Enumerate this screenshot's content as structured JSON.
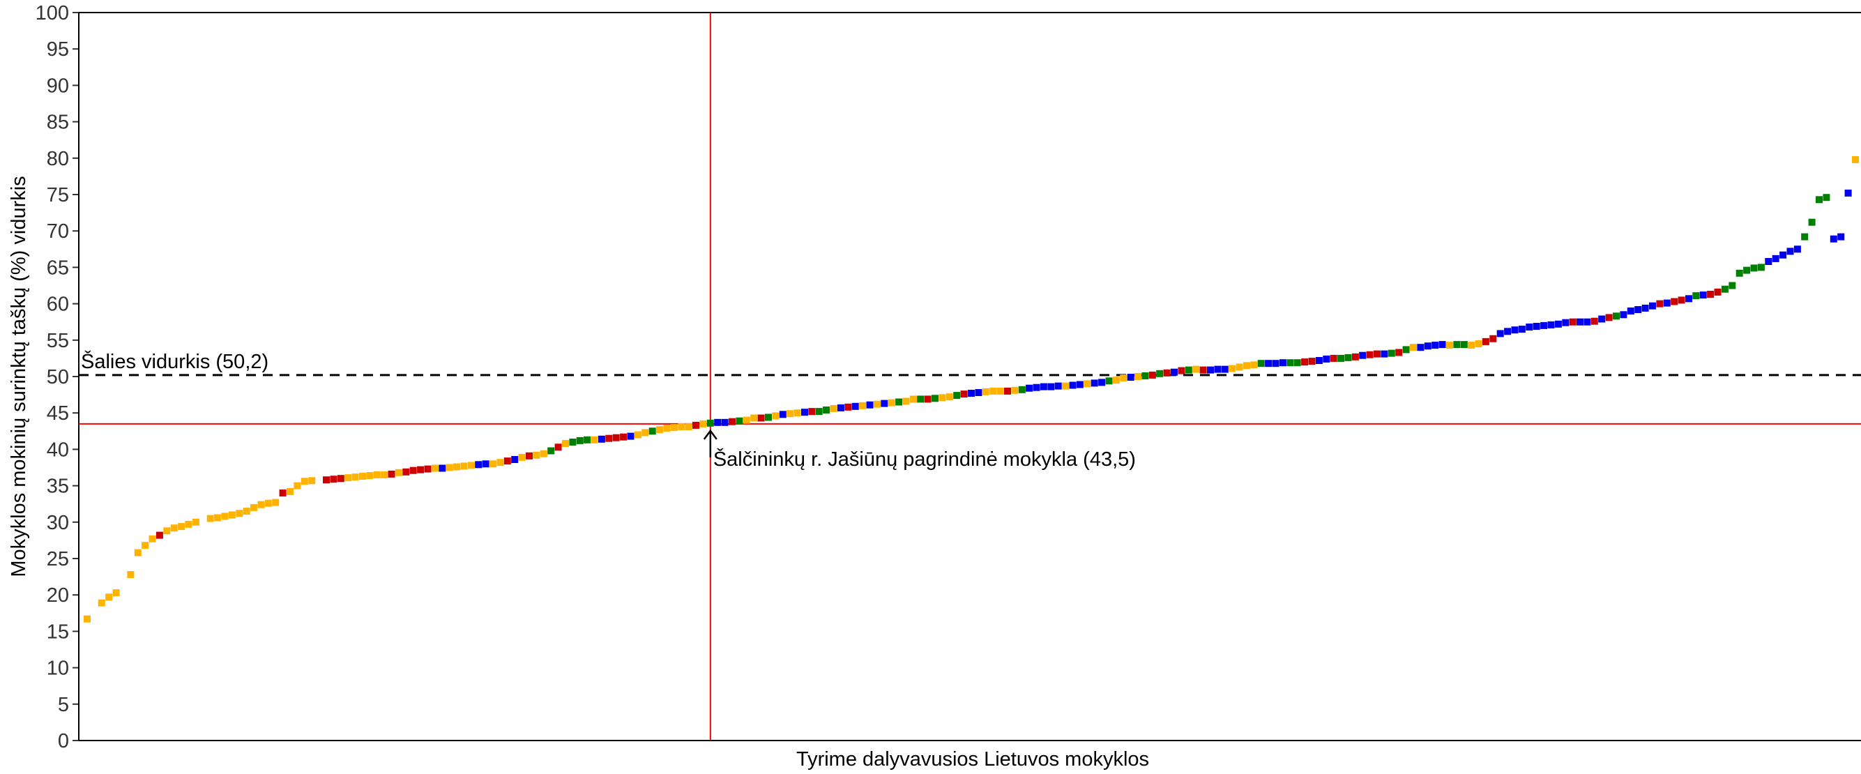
{
  "chart_data": {
    "type": "scatter",
    "xlabel": "Tyrime dalyvavusios Lietuvos mokyklos",
    "ylabel": "Mokyklos mokinių surinktų taškų (%) vidurkis",
    "ylim": [
      0,
      100
    ],
    "yticks": [
      "0",
      "5",
      "10",
      "15",
      "20",
      "25",
      "30",
      "35",
      "40",
      "45",
      "50",
      "55",
      "60",
      "65",
      "70",
      "75",
      "80",
      "85",
      "90",
      "95",
      "100"
    ],
    "grid": false,
    "legend": "none",
    "colors": {
      "orange": "#FFB300",
      "red": "#CC0000",
      "green": "#008000",
      "blue": "#0000EE"
    },
    "reference_lines": {
      "national_average": {
        "label": "Šalies vidurkis (50,2)",
        "value": 50.2,
        "color": "#000000",
        "style": "dashed"
      },
      "selected_school": {
        "label": "Šalčininkų r. Jašiūnų pagrindinė mokykla (43,5)",
        "value": 43.5,
        "rank": 87,
        "color": "#FF0000"
      }
    },
    "x_count": 245,
    "series": [
      {
        "color": "orange",
        "points": [
          [
            1,
            16.7
          ],
          [
            3,
            18.9
          ],
          [
            4,
            19.7
          ],
          [
            5,
            20.3
          ],
          [
            7,
            22.8
          ],
          [
            8,
            25.8
          ],
          [
            9,
            26.8
          ],
          [
            10,
            27.7
          ],
          [
            12,
            28.8
          ],
          [
            13,
            29.2
          ],
          [
            14,
            29.4
          ],
          [
            15,
            29.7
          ],
          [
            16,
            30.0
          ],
          [
            18,
            30.5
          ],
          [
            19,
            30.6
          ],
          [
            20,
            30.8
          ],
          [
            21,
            31.0
          ],
          [
            22,
            31.2
          ],
          [
            23,
            31.5
          ],
          [
            24,
            32.0
          ],
          [
            25,
            32.4
          ],
          [
            26,
            32.6
          ],
          [
            27,
            32.7
          ],
          [
            29,
            34.2
          ],
          [
            30,
            35.0
          ],
          [
            31,
            35.6
          ],
          [
            32,
            35.7
          ],
          [
            37,
            36.1
          ],
          [
            38,
            36.2
          ],
          [
            39,
            36.3
          ],
          [
            40,
            36.4
          ],
          [
            41,
            36.5
          ],
          [
            42,
            36.5
          ],
          [
            44,
            36.8
          ],
          [
            49,
            37.4
          ],
          [
            51,
            37.5
          ],
          [
            52,
            37.6
          ],
          [
            53,
            37.7
          ],
          [
            54,
            37.8
          ],
          [
            57,
            38.0
          ],
          [
            58,
            38.2
          ],
          [
            61,
            38.9
          ],
          [
            63,
            39.2
          ],
          [
            64,
            39.4
          ],
          [
            67,
            40.8
          ],
          [
            71,
            41.3
          ],
          [
            77,
            42.0
          ],
          [
            78,
            42.3
          ],
          [
            80,
            42.7
          ],
          [
            81,
            42.9
          ],
          [
            82,
            43.0
          ],
          [
            83,
            43.1
          ],
          [
            84,
            43.1
          ],
          [
            86,
            43.5
          ],
          [
            92,
            44.0
          ],
          [
            93,
            44.3
          ],
          [
            96,
            44.6
          ],
          [
            98,
            44.9
          ],
          [
            99,
            45.0
          ],
          [
            104,
            45.6
          ],
          [
            108,
            46.0
          ],
          [
            110,
            46.2
          ],
          [
            112,
            46.4
          ],
          [
            114,
            46.6
          ],
          [
            115,
            46.9
          ],
          [
            119,
            47.1
          ],
          [
            120,
            47.2
          ],
          [
            125,
            47.9
          ],
          [
            126,
            48.0
          ],
          [
            127,
            48.0
          ],
          [
            129,
            48.1
          ],
          [
            136,
            48.7
          ],
          [
            139,
            49.0
          ],
          [
            143,
            49.5
          ],
          [
            144,
            49.8
          ],
          [
            146,
            50.0
          ],
          [
            154,
            51.0
          ],
          [
            159,
            51.1
          ],
          [
            160,
            51.3
          ],
          [
            161,
            51.5
          ],
          [
            162,
            51.6
          ],
          [
            184,
            54.0
          ],
          [
            189,
            54.3
          ],
          [
            192,
            54.3
          ],
          [
            193,
            54.5
          ],
          [
            245,
            79.8
          ]
        ]
      },
      {
        "color": "red",
        "points": [
          [
            11,
            28.2
          ],
          [
            28,
            34.0
          ],
          [
            34,
            35.8
          ],
          [
            35,
            35.9
          ],
          [
            36,
            36.0
          ],
          [
            43,
            36.6
          ],
          [
            45,
            36.9
          ],
          [
            46,
            37.1
          ],
          [
            47,
            37.2
          ],
          [
            48,
            37.3
          ],
          [
            59,
            38.4
          ],
          [
            62,
            39.1
          ],
          [
            66,
            40.3
          ],
          [
            73,
            41.5
          ],
          [
            74,
            41.6
          ],
          [
            75,
            41.7
          ],
          [
            85,
            43.3
          ],
          [
            90,
            43.8
          ],
          [
            94,
            44.3
          ],
          [
            101,
            45.2
          ],
          [
            106,
            45.8
          ],
          [
            117,
            46.9
          ],
          [
            122,
            47.6
          ],
          [
            128,
            48.0
          ],
          [
            148,
            50.2
          ],
          [
            150,
            50.5
          ],
          [
            152,
            50.8
          ],
          [
            155,
            50.9
          ],
          [
            169,
            52.0
          ],
          [
            170,
            52.1
          ],
          [
            173,
            52.5
          ],
          [
            176,
            52.7
          ],
          [
            178,
            53.0
          ],
          [
            179,
            53.1
          ],
          [
            182,
            53.3
          ],
          [
            194,
            54.8
          ],
          [
            195,
            55.2
          ],
          [
            206,
            57.5
          ],
          [
            209,
            57.6
          ],
          [
            211,
            58.1
          ],
          [
            218,
            60.0
          ],
          [
            220,
            60.3
          ],
          [
            221,
            60.5
          ],
          [
            225,
            61.3
          ],
          [
            226,
            61.6
          ]
        ]
      },
      {
        "color": "green",
        "points": [
          [
            65,
            39.8
          ],
          [
            68,
            41.0
          ],
          [
            69,
            41.2
          ],
          [
            70,
            41.3
          ],
          [
            79,
            42.5
          ],
          [
            87,
            43.6
          ],
          [
            91,
            43.9
          ],
          [
            95,
            44.4
          ],
          [
            102,
            45.2
          ],
          [
            103,
            45.4
          ],
          [
            113,
            46.5
          ],
          [
            116,
            46.9
          ],
          [
            118,
            47.0
          ],
          [
            121,
            47.4
          ],
          [
            130,
            48.2
          ],
          [
            142,
            49.4
          ],
          [
            147,
            50.1
          ],
          [
            149,
            50.4
          ],
          [
            153,
            50.9
          ],
          [
            163,
            51.8
          ],
          [
            167,
            51.9
          ],
          [
            168,
            51.9
          ],
          [
            174,
            52.5
          ],
          [
            175,
            52.6
          ],
          [
            181,
            53.2
          ],
          [
            183,
            53.7
          ],
          [
            190,
            54.4
          ],
          [
            191,
            54.4
          ],
          [
            212,
            58.3
          ],
          [
            223,
            61.1
          ],
          [
            227,
            62.0
          ],
          [
            228,
            62.5
          ],
          [
            229,
            64.2
          ],
          [
            230,
            64.6
          ],
          [
            231,
            64.9
          ],
          [
            232,
            65.0
          ],
          [
            238,
            69.2
          ],
          [
            239,
            71.2
          ],
          [
            240,
            74.3
          ],
          [
            241,
            74.6
          ]
        ]
      },
      {
        "color": "blue",
        "points": [
          [
            50,
            37.4
          ],
          [
            55,
            37.9
          ],
          [
            56,
            38.0
          ],
          [
            60,
            38.6
          ],
          [
            72,
            41.4
          ],
          [
            76,
            41.8
          ],
          [
            88,
            43.7
          ],
          [
            89,
            43.7
          ],
          [
            97,
            44.8
          ],
          [
            100,
            45.1
          ],
          [
            105,
            45.7
          ],
          [
            107,
            45.9
          ],
          [
            109,
            46.1
          ],
          [
            111,
            46.3
          ],
          [
            123,
            47.7
          ],
          [
            124,
            47.8
          ],
          [
            131,
            48.4
          ],
          [
            132,
            48.5
          ],
          [
            133,
            48.6
          ],
          [
            134,
            48.6
          ],
          [
            135,
            48.7
          ],
          [
            137,
            48.8
          ],
          [
            138,
            48.9
          ],
          [
            140,
            49.1
          ],
          [
            141,
            49.2
          ],
          [
            145,
            49.9
          ],
          [
            151,
            50.6
          ],
          [
            156,
            50.9
          ],
          [
            157,
            51.0
          ],
          [
            158,
            51.0
          ],
          [
            164,
            51.8
          ],
          [
            165,
            51.8
          ],
          [
            166,
            51.9
          ],
          [
            171,
            52.2
          ],
          [
            172,
            52.4
          ],
          [
            177,
            52.9
          ],
          [
            180,
            53.1
          ],
          [
            185,
            54.0
          ],
          [
            186,
            54.2
          ],
          [
            187,
            54.3
          ],
          [
            188,
            54.4
          ],
          [
            196,
            55.9
          ],
          [
            197,
            56.2
          ],
          [
            198,
            56.4
          ],
          [
            199,
            56.5
          ],
          [
            200,
            56.8
          ],
          [
            201,
            56.9
          ],
          [
            202,
            57.0
          ],
          [
            203,
            57.1
          ],
          [
            204,
            57.2
          ],
          [
            205,
            57.4
          ],
          [
            207,
            57.5
          ],
          [
            208,
            57.5
          ],
          [
            210,
            57.9
          ],
          [
            213,
            58.5
          ],
          [
            214,
            59.0
          ],
          [
            215,
            59.2
          ],
          [
            216,
            59.4
          ],
          [
            217,
            59.7
          ],
          [
            219,
            60.1
          ],
          [
            222,
            60.7
          ],
          [
            224,
            61.2
          ],
          [
            233,
            65.8
          ],
          [
            234,
            66.2
          ],
          [
            235,
            66.7
          ],
          [
            236,
            67.2
          ],
          [
            237,
            67.5
          ],
          [
            242,
            68.9
          ],
          [
            243,
            69.2
          ],
          [
            244,
            75.2
          ]
        ]
      }
    ]
  }
}
